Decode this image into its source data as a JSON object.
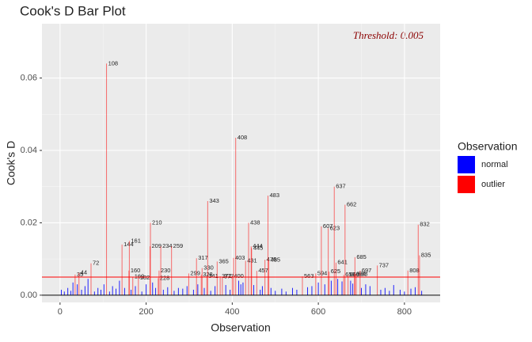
{
  "chart_data": {
    "type": "bar",
    "title": "Cook's D Bar Plot",
    "x_label": "Observation",
    "y_label": "Cook's D",
    "legend_title": "Observation",
    "legend": "right",
    "annotation": "Threshold: 0.005",
    "threshold": 0.005,
    "threshold_color": "red",
    "xlim": [
      -42,
      883
    ],
    "ylim": [
      -0.002,
      0.075
    ],
    "xticks": [
      0,
      200,
      400,
      600,
      800
    ],
    "yticks": [
      {
        "value": 0,
        "label": "0.00"
      },
      {
        "value": 0.02,
        "label": "0.02"
      },
      {
        "value": 0.04,
        "label": "0.04"
      },
      {
        "value": 0.06,
        "label": "0.06"
      }
    ],
    "grid": true,
    "series": [
      {
        "name": "normal",
        "color": "blue",
        "x": [
          3,
          10,
          18,
          25,
          30,
          40,
          50,
          58,
          65,
          80,
          88,
          95,
          102,
          115,
          122,
          130,
          138,
          150,
          165,
          175,
          190,
          200,
          215,
          222,
          240,
          250,
          265,
          275,
          285,
          295,
          310,
          320,
          335,
          350,
          360,
          385,
          395,
          415,
          420,
          425,
          450,
          465,
          470,
          490,
          500,
          515,
          525,
          540,
          550,
          575,
          585,
          600,
          615,
          630,
          645,
          655,
          675,
          680,
          700,
          710,
          720,
          745,
          755,
          765,
          775,
          790,
          800,
          815,
          825,
          840
        ],
        "values": [
          0.0015,
          0.001,
          0.002,
          0.0012,
          0.0035,
          0.003,
          0.0015,
          0.0025,
          0.0045,
          0.001,
          0.002,
          0.0015,
          0.003,
          0.001,
          0.0025,
          0.0018,
          0.004,
          0.002,
          0.0015,
          0.0025,
          0.001,
          0.003,
          0.0035,
          0.002,
          0.0015,
          0.0022,
          0.0012,
          0.002,
          0.0018,
          0.0025,
          0.0015,
          0.003,
          0.002,
          0.0012,
          0.0025,
          0.0028,
          0.0015,
          0.004,
          0.003,
          0.0035,
          0.0028,
          0.0015,
          0.0025,
          0.002,
          0.0012,
          0.0018,
          0.001,
          0.002,
          0.0015,
          0.0022,
          0.0025,
          0.0035,
          0.003,
          0.004,
          0.0045,
          0.0038,
          0.004,
          0.0032,
          0.002,
          0.003,
          0.0025,
          0.0015,
          0.002,
          0.0012,
          0.0028,
          0.0015,
          0.001,
          0.0018,
          0.0022,
          0.0012
        ]
      },
      {
        "name": "outlier",
        "color": "red",
        "x": [
          35,
          44,
          72,
          108,
          144,
          160,
          161,
          169,
          182,
          209,
          210,
          228,
          230,
          234,
          259,
          299,
          317,
          328,
          330,
          341,
          343,
          365,
          372,
          377,
          400,
          403,
          408,
          431,
          438,
          444,
          445,
          457,
          476,
          483,
          485,
          563,
          594,
          607,
          623,
          625,
          637,
          641,
          659,
          662,
          669,
          684,
          685,
          688,
          697,
          737,
          808,
          832,
          835
        ],
        "values": [
          0.0057,
          0.0062,
          0.0088,
          0.064,
          0.014,
          0.0068,
          0.015,
          0.0051,
          0.0048,
          0.0135,
          0.02,
          0.0047,
          0.0068,
          0.0135,
          0.0135,
          0.006,
          0.0102,
          0.0057,
          0.0075,
          0.0052,
          0.026,
          0.0093,
          0.0052,
          0.0051,
          0.0052,
          0.0103,
          0.0435,
          0.0095,
          0.02,
          0.0135,
          0.013,
          0.0067,
          0.0098,
          0.0275,
          0.0097,
          0.0052,
          0.006,
          0.019,
          0.0185,
          0.0065,
          0.03,
          0.009,
          0.0056,
          0.025,
          0.0056,
          0.0058,
          0.0105,
          0.0058,
          0.0068,
          0.0082,
          0.0068,
          0.0195,
          0.011
        ]
      }
    ]
  }
}
